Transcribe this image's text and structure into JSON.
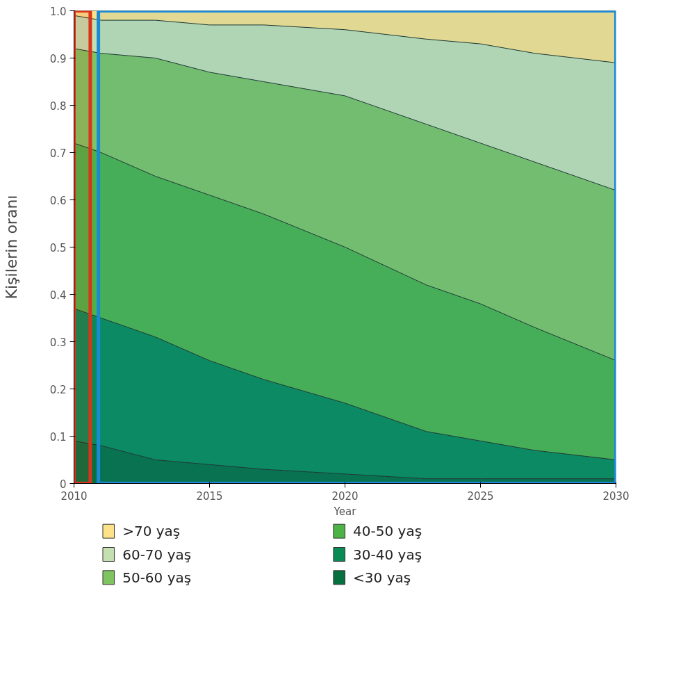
{
  "chart_data": {
    "type": "area",
    "stacked": true,
    "xlabel": "Year",
    "ylabel": "Kişilerin oranı",
    "x": [
      2010,
      2011,
      2013,
      2015,
      2017,
      2020,
      2023,
      2025,
      2027,
      2030
    ],
    "series": [
      {
        "name": "<30 yaş",
        "color": "#07703f",
        "values": [
          0.09,
          0.08,
          0.05,
          0.04,
          0.03,
          0.02,
          0.01,
          0.01,
          0.01,
          0.01
        ]
      },
      {
        "name": "30-40 yaş",
        "color": "#0a8a55",
        "values": [
          0.28,
          0.27,
          0.26,
          0.22,
          0.19,
          0.15,
          0.1,
          0.08,
          0.06,
          0.04
        ]
      },
      {
        "name": "40-50 yaş",
        "color": "#4db347",
        "values": [
          0.35,
          0.35,
          0.34,
          0.35,
          0.35,
          0.33,
          0.31,
          0.29,
          0.26,
          0.21
        ]
      },
      {
        "name": "50-60 yaş",
        "color": "#80c462",
        "values": [
          0.2,
          0.21,
          0.25,
          0.26,
          0.28,
          0.32,
          0.34,
          0.34,
          0.35,
          0.36
        ]
      },
      {
        "name": "60-70 yaş",
        "color": "#c5e0b0",
        "values": [
          0.07,
          0.07,
          0.08,
          0.1,
          0.12,
          0.14,
          0.18,
          0.21,
          0.23,
          0.27
        ]
      },
      {
        "name": ">70 yaş",
        "color": "#fce38a",
        "values": [
          0.01,
          0.02,
          0.02,
          0.03,
          0.03,
          0.04,
          0.06,
          0.07,
          0.09,
          0.11
        ]
      }
    ],
    "xlim": [
      2010,
      2030
    ],
    "xticks": [
      2010,
      2015,
      2020,
      2025,
      2030
    ],
    "ylim": [
      0,
      1
    ],
    "yticks": [
      0,
      0.1,
      0.2,
      0.3,
      0.4,
      0.5,
      0.6,
      0.7,
      0.8,
      0.9,
      {
        "value": 1,
        "label": "1.0"
      }
    ],
    "bands": [
      {
        "axis": "x",
        "from": 2010,
        "to": 2010.6,
        "color": "#d9341c"
      },
      {
        "axis": "x",
        "from": 2010.9,
        "to": 2030,
        "color": "#1a8ad8"
      }
    ],
    "legend": "bottom"
  }
}
